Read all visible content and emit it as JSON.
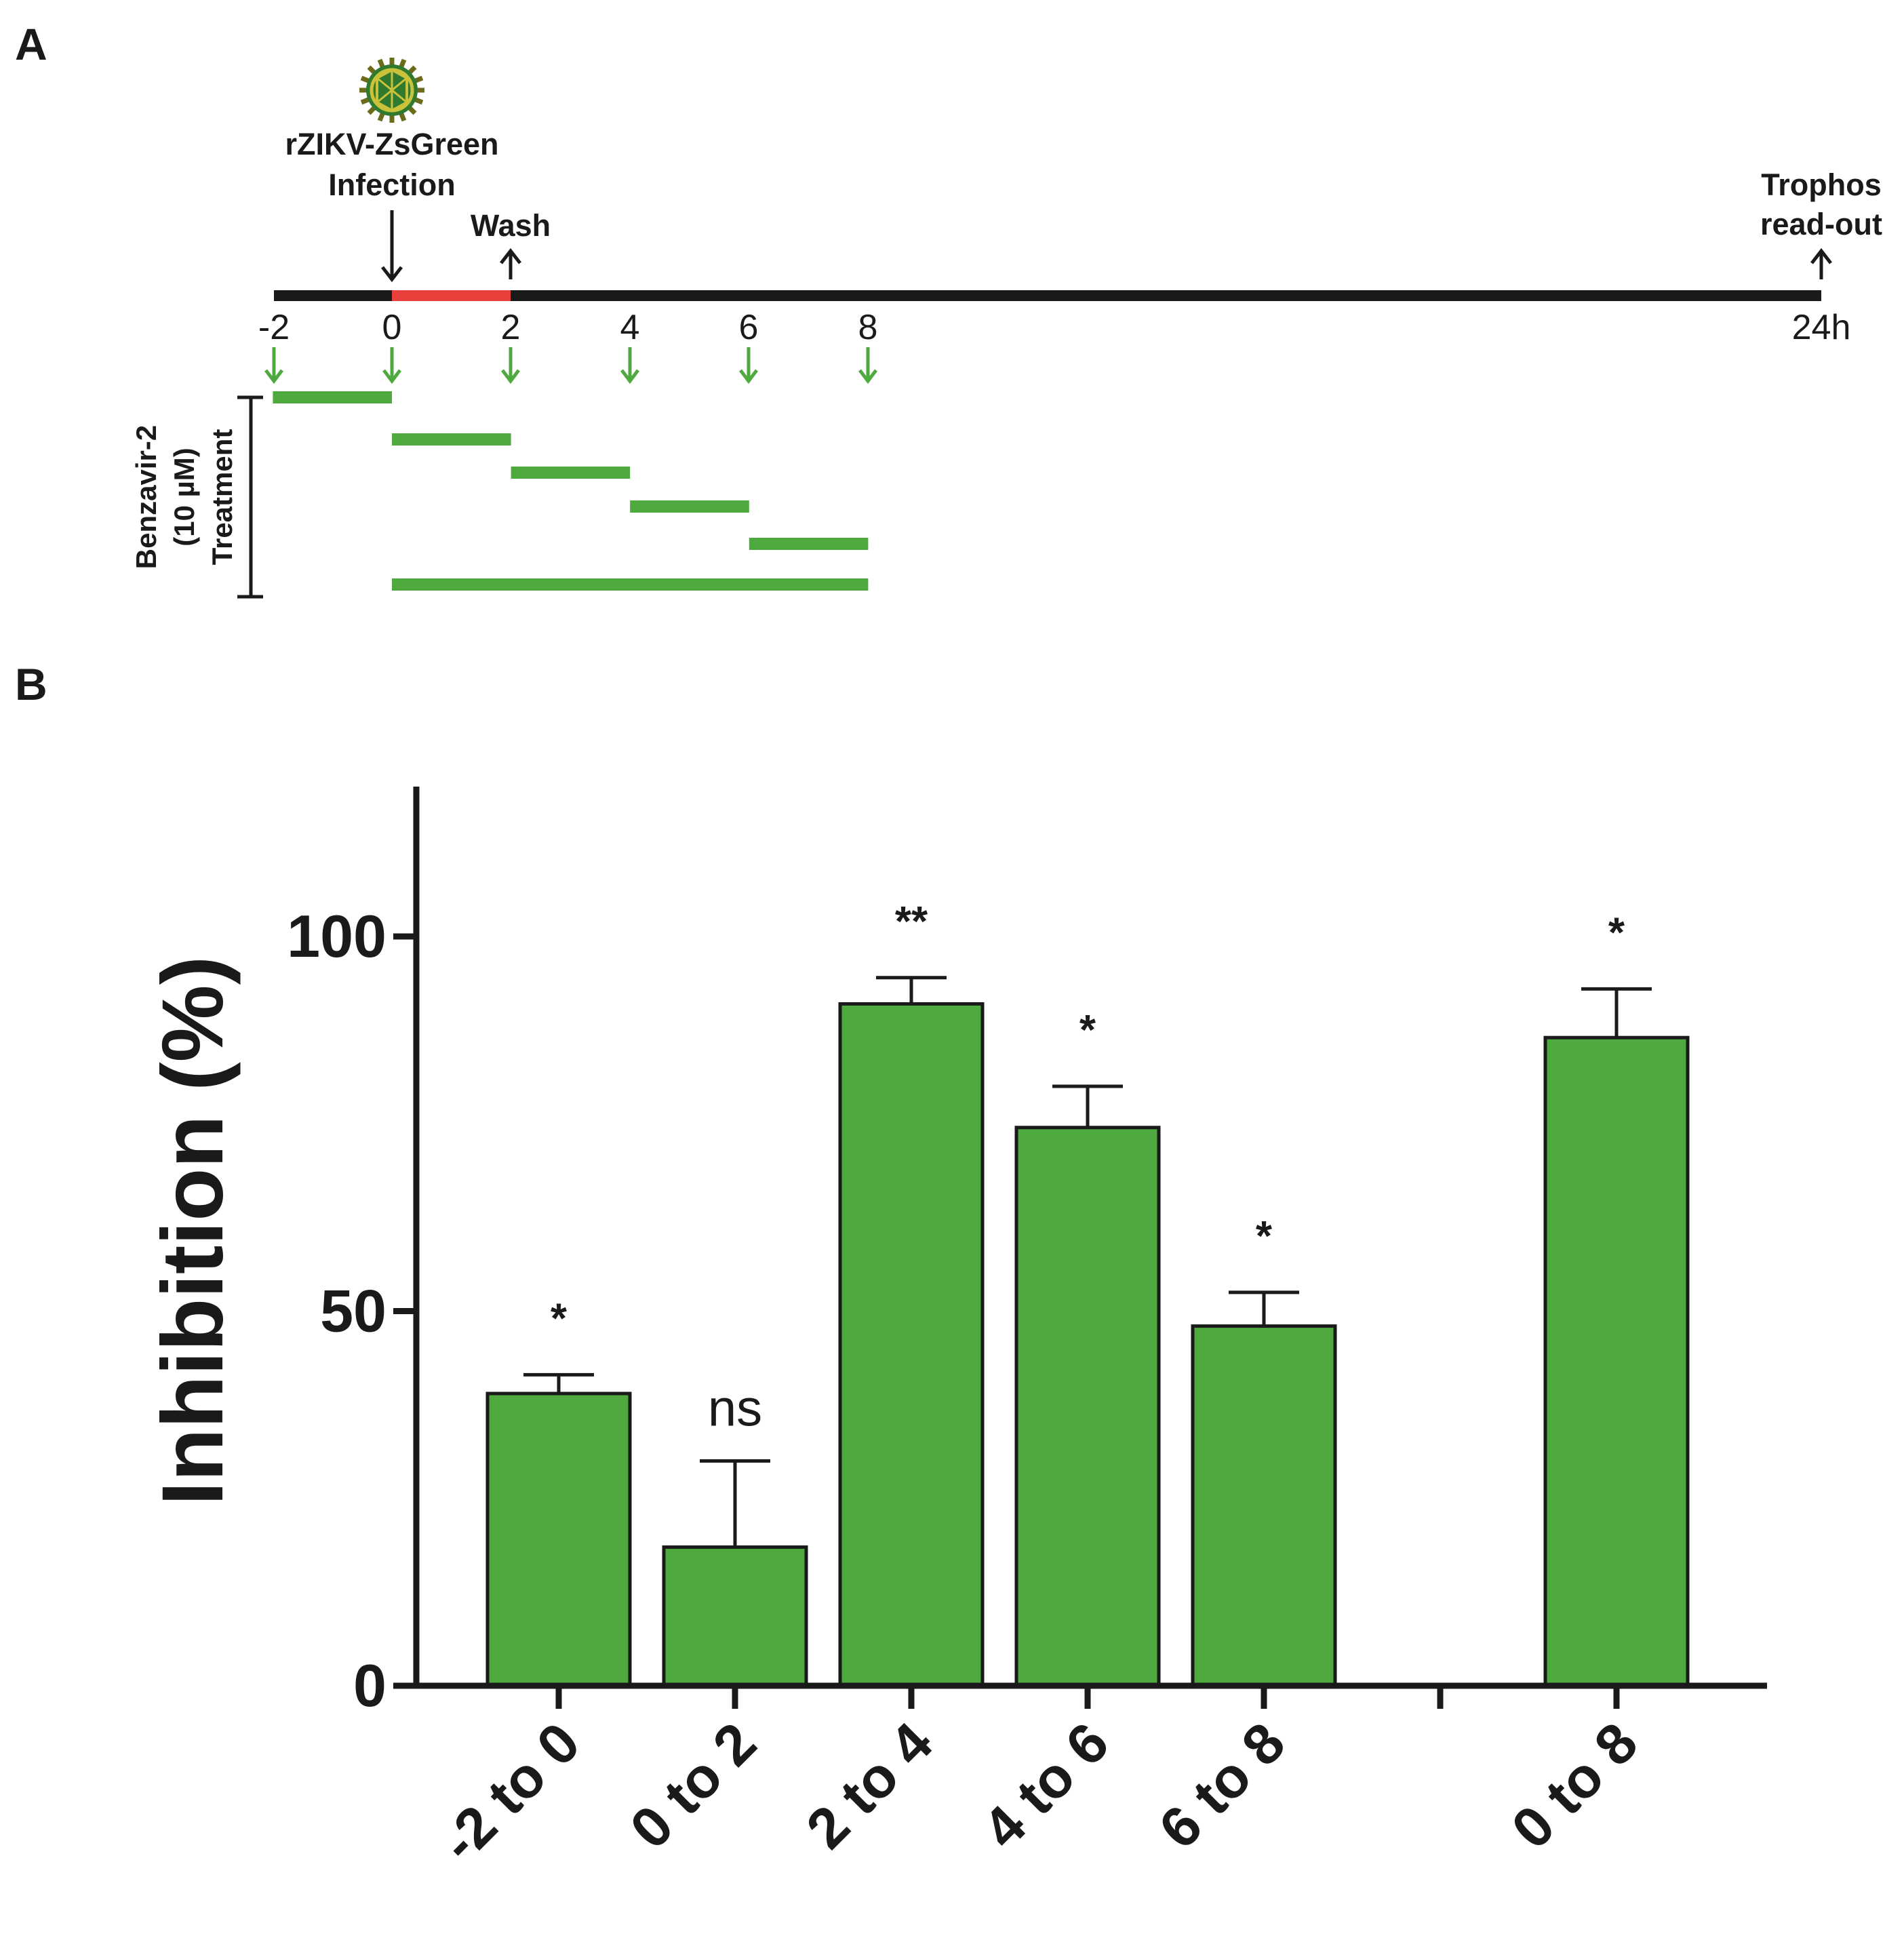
{
  "panel_a": {
    "label": "A",
    "virus_icon": "virus-particle-icon",
    "infection_label_line1": "rZIKV-ZsGreen",
    "infection_label_line2": "Infection",
    "wash_label": "Wash",
    "readout_label_line1": "Trophos",
    "readout_label_line2": "read-out",
    "timeline_ticks": [
      "-2",
      "0",
      "2",
      "4",
      "6",
      "8",
      "24h"
    ],
    "treatment_label_line1": "Benzavir-2",
    "treatment_label_line2": "(10 µM)",
    "treatment_label_line3": "Treatment",
    "infection_window_h": [
      0,
      2
    ],
    "treatment_windows_h": [
      [
        -2,
        0
      ],
      [
        0,
        2
      ],
      [
        2,
        4
      ],
      [
        4,
        6
      ],
      [
        6,
        8
      ],
      [
        0,
        8
      ]
    ],
    "colors": {
      "timeline": "#1a1a1a",
      "infection": "#e8403a",
      "treatment": "#4ea93e",
      "arrow_green": "#4ea93e"
    }
  },
  "panel_b": {
    "label": "B"
  },
  "chart_data": {
    "type": "bar",
    "title": "",
    "xlabel": "",
    "ylabel": "Inhibition (%)",
    "ylim": [
      0,
      120
    ],
    "yticks": [
      "0",
      "50",
      "100"
    ],
    "ytick_values": [
      0,
      50,
      100
    ],
    "grid": false,
    "categories": [
      "-2 to 0",
      "0 to 2",
      "2 to 4",
      "4 to 6",
      "6 to 8",
      "",
      "0 to 8"
    ],
    "values": [
      39,
      18.5,
      91,
      74.5,
      48,
      null,
      86.5
    ],
    "errors": [
      2.5,
      11.5,
      3.5,
      5.5,
      4.5,
      null,
      6.5
    ],
    "significance": [
      "*",
      "ns",
      "**",
      "*",
      "*",
      "",
      "*"
    ],
    "bar_color": "#4ea93e"
  }
}
